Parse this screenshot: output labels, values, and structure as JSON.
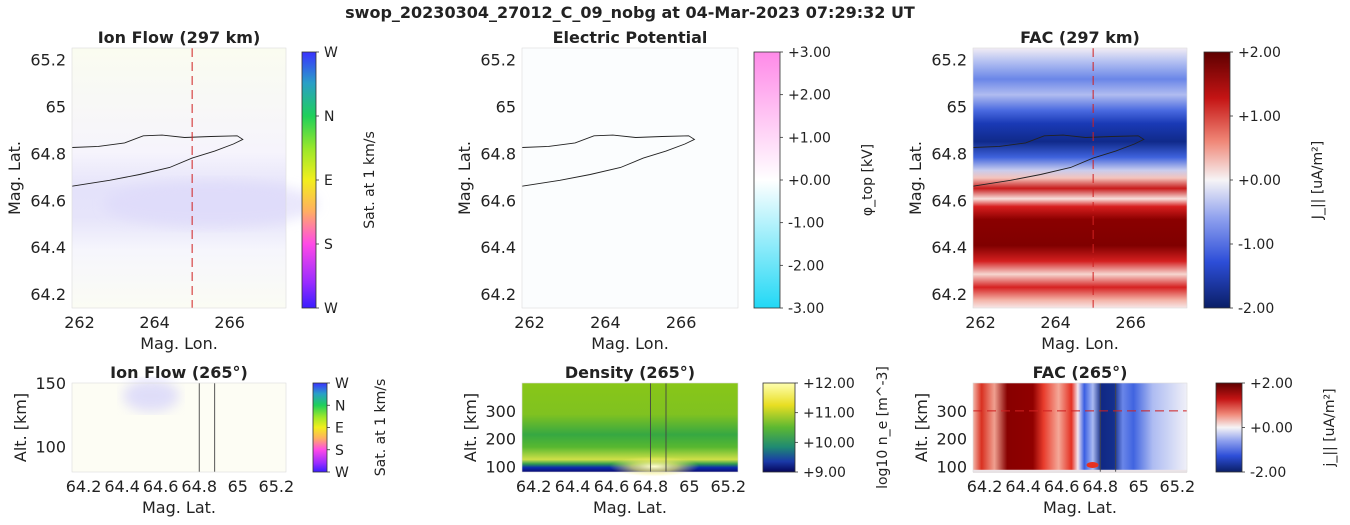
{
  "title": "swop_20230304_27012_C_09_nobg at 04-Mar-2023 07:29:32 UT",
  "chart_data": [
    {
      "id": "ionflow_top",
      "type": "heatmap",
      "title": "Ion Flow (297 km)",
      "xlabel": "Mag. Lon.",
      "ylabel": "Mag. Lat.",
      "xlim": [
        261.8,
        267.5
      ],
      "ylim": [
        64.14,
        65.25
      ],
      "xticks": [
        262,
        264,
        266
      ],
      "yticks": [
        64.2,
        64.4,
        64.6,
        64.8,
        65,
        65.2
      ],
      "ytick_labels": [
        "64.2",
        "64.4",
        "64.6",
        "64.8",
        "65",
        "65.2"
      ],
      "colorbar": {
        "label": "Sat. at 1 km/s",
        "ticks": [
          "W",
          "N",
          "E",
          "S",
          "W"
        ],
        "colors": [
          "#3a2bff",
          "#1fd05a",
          "#f2ee1c",
          "#ff3fe0",
          "#4a2bff"
        ]
      },
      "marker_line_x": 265
    },
    {
      "id": "potential_top",
      "type": "heatmap",
      "title": "Electric Potential",
      "xlabel": "Mag. Lon.",
      "ylabel": "Mag. Lat.",
      "xlim": [
        261.8,
        267.5
      ],
      "ylim": [
        64.14,
        65.25
      ],
      "xticks": [
        262,
        264,
        266
      ],
      "yticks": [
        64.2,
        64.4,
        64.6,
        64.8,
        65,
        65.2
      ],
      "ytick_labels": [
        "64.2",
        "64.4",
        "64.6",
        "64.8",
        "65",
        "65.2"
      ],
      "colorbar": {
        "label": "φ_top [kV]",
        "ticks": [
          "+3.00",
          "+2.00",
          "+1.00",
          "+0.00",
          "-1.00",
          "-2.00",
          "-3.00"
        ],
        "colors": [
          "#ff55e0",
          "#ffffff",
          "#22d8f5"
        ]
      }
    },
    {
      "id": "fac_top",
      "type": "heatmap",
      "title": "FAC (297 km)",
      "xlabel": "Mag. Lon.",
      "ylabel": "Mag. Lat.",
      "xlim": [
        261.8,
        267.5
      ],
      "ylim": [
        64.14,
        65.25
      ],
      "xticks": [
        262,
        264,
        266
      ],
      "yticks": [
        64.2,
        64.4,
        64.6,
        64.8,
        65,
        65.2
      ],
      "ytick_labels": [
        "64.2",
        "64.4",
        "64.6",
        "64.8",
        "65",
        "65.2"
      ],
      "colorbar": {
        "label": "J_|| [uA/m²]",
        "ticks": [
          "+2.00",
          "+1.00",
          "+0.00",
          "-1.00",
          "-2.00"
        ],
        "colors": [
          "#660000",
          "#e52020",
          "#ffffff",
          "#2d55e0",
          "#0a1e66"
        ]
      },
      "marker_line_x": 265
    },
    {
      "id": "ionflow_bot",
      "type": "heatmap",
      "title": "Ion Flow (265°)",
      "xlabel": "Mag. Lat.",
      "ylabel": "Alt. [km]",
      "xlim": [
        64.14,
        65.25
      ],
      "ylim": [
        80,
        150
      ],
      "xticks": [
        64.2,
        64.4,
        64.6,
        64.8,
        65,
        65.2
      ],
      "xtick_labels": [
        "64.2",
        "64.4",
        "64.6",
        "64.8",
        "65",
        "65.2"
      ],
      "yticks": [
        100,
        150
      ],
      "colorbar": {
        "label": "Sat. at 1 km/s",
        "ticks": [
          "W",
          "N",
          "E",
          "S",
          "W"
        ],
        "colors": [
          "#3a2bff",
          "#1fd05a",
          "#f2ee1c",
          "#ff3fe0",
          "#4a2bff"
        ]
      },
      "marker_lines_x": [
        64.8,
        64.88
      ]
    },
    {
      "id": "density_bot",
      "type": "heatmap",
      "title": "Density (265°)",
      "xlabel": "Mag. Lat.",
      "ylabel": "Alt. [km]",
      "xlim": [
        64.14,
        65.25
      ],
      "ylim": [
        80,
        400
      ],
      "xticks": [
        64.2,
        64.4,
        64.6,
        64.8,
        65,
        65.2
      ],
      "xtick_labels": [
        "64.2",
        "64.4",
        "64.6",
        "64.8",
        "65",
        "65.2"
      ],
      "yticks": [
        100,
        200,
        300
      ],
      "colorbar": {
        "label": "log10 n_e [m^-3]",
        "ticks": [
          "+12.00",
          "+11.00",
          "+10.00",
          "+9.00"
        ],
        "colors": [
          "#ffffa0",
          "#f0e020",
          "#2aa04a",
          "#1a30a0",
          "#0a0a60"
        ]
      },
      "marker_lines_x": [
        64.8,
        64.88
      ]
    },
    {
      "id": "fac_bot",
      "type": "heatmap",
      "title": "FAC (265°)",
      "xlabel": "Mag. Lat.",
      "ylabel": "Alt. [km]",
      "xlim": [
        64.14,
        65.25
      ],
      "ylim": [
        80,
        400
      ],
      "xticks": [
        64.2,
        64.4,
        64.6,
        64.8,
        65,
        65.2
      ],
      "xtick_labels": [
        "64.2",
        "64.4",
        "64.6",
        "64.8",
        "65",
        "65.2"
      ],
      "yticks": [
        100,
        200,
        300
      ],
      "colorbar": {
        "label": "j_|| [uA/m²]",
        "ticks": [
          "+2.00",
          "+0.00",
          "-2.00"
        ],
        "colors": [
          "#800000",
          "#ffffff",
          "#2020c0"
        ]
      },
      "marker_lines_x": [
        64.8,
        64.88
      ],
      "marker_line_y": 300
    }
  ]
}
